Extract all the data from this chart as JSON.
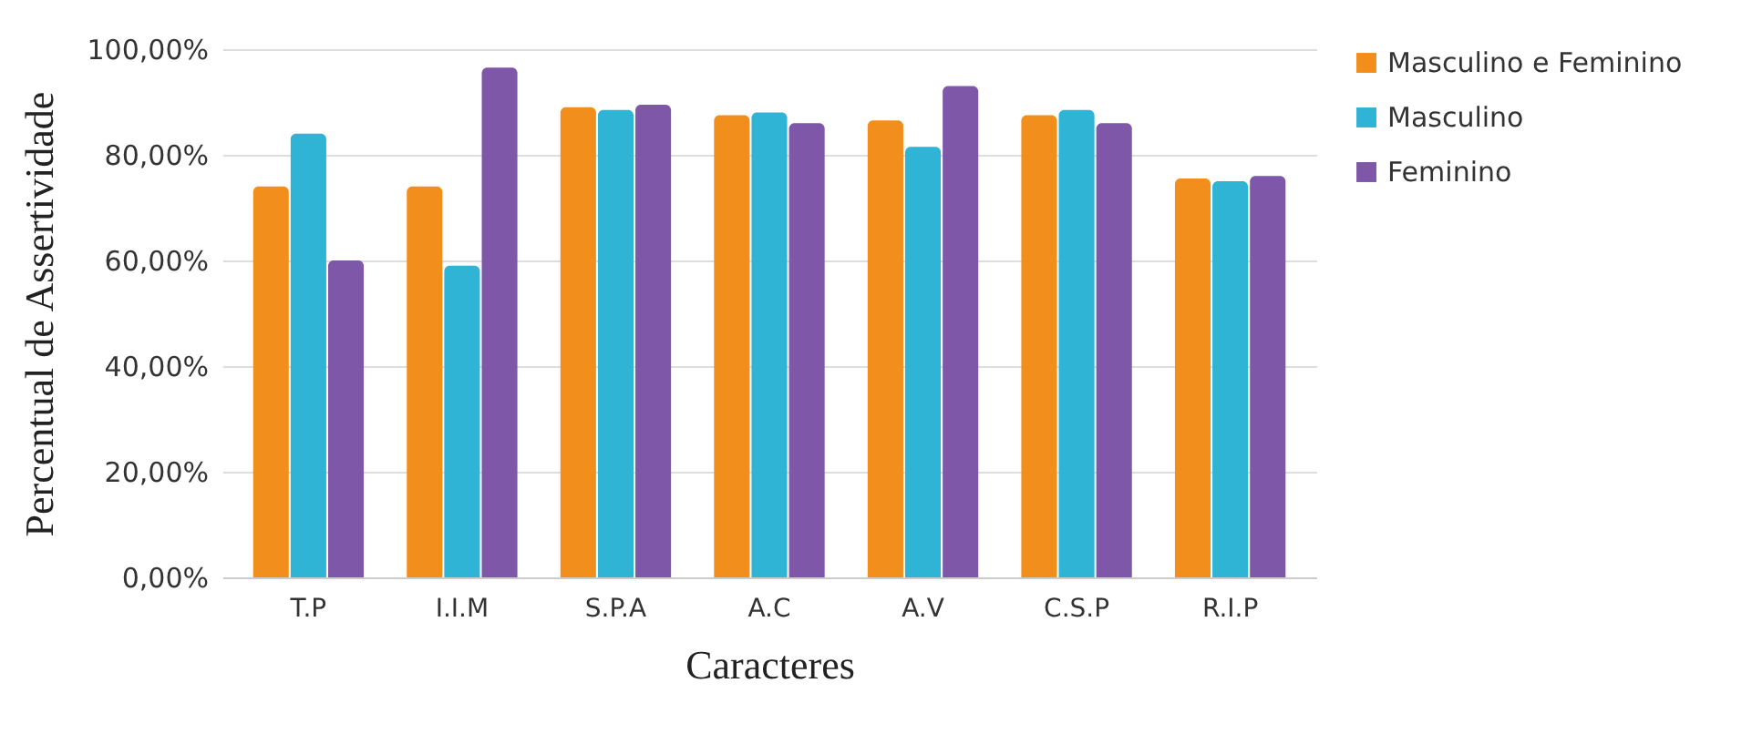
{
  "chart_data": {
    "type": "bar",
    "xlabel": "Caracteres",
    "ylabel": "Percentual de Assertividade",
    "categories": [
      "T.P",
      "I.I.M",
      "S.P.A",
      "A.C",
      "A.V",
      "C.S.P",
      "R.I.P"
    ],
    "series": [
      {
        "name": "Masculino e Feminino",
        "color": "#f28e1c",
        "values": [
          74,
          74,
          89,
          87.5,
          86.5,
          87.5,
          75.5
        ]
      },
      {
        "name": "Masculino",
        "color": "#2fb4d6",
        "values": [
          84,
          59,
          88.5,
          88,
          81.5,
          88.5,
          75
        ]
      },
      {
        "name": "Feminino",
        "color": "#7e57a8",
        "values": [
          60,
          96.5,
          89.5,
          86,
          93,
          86,
          76
        ]
      }
    ],
    "ylim": [
      0,
      100
    ],
    "yticks": [
      {
        "value": 0,
        "label": "0,00%"
      },
      {
        "value": 20,
        "label": "20,00%"
      },
      {
        "value": 40,
        "label": "40,00%"
      },
      {
        "value": 60,
        "label": "60,00%"
      },
      {
        "value": 80,
        "label": "80,00%"
      },
      {
        "value": 100,
        "label": "100,00%"
      }
    ],
    "grid": "y",
    "legend": "right"
  }
}
